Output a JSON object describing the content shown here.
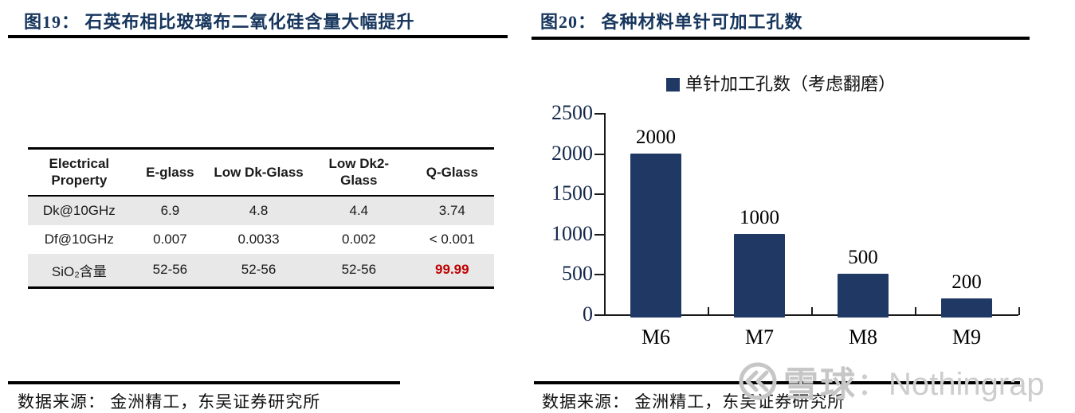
{
  "page": {
    "background": "#FFFFFF"
  },
  "colors": {
    "title_navy": "#17365D",
    "bar_navy": "#1F3864",
    "highlight_red": "#C00000",
    "table_row_shade": "#E8E8E8",
    "rule_black": "#000000",
    "watermark_gray": "#C6C6C6"
  },
  "figure_left": {
    "title": "图19： 石英布相比玻璃布二氧化硅含量大幅提升",
    "source": "数据来源： 金洲精工，东吴证券研究所",
    "table": {
      "headers": [
        "Electrical Property",
        "E-glass",
        "Low Dk-Glass",
        "Low Dk2-Glass",
        "Q-Glass"
      ],
      "rows": [
        {
          "cells": [
            "Dk@10GHz",
            "6.9",
            "4.8",
            "4.4",
            "3.74"
          ]
        },
        {
          "cells": [
            "Df@10GHz",
            "0.007",
            "0.0033",
            "0.002",
            "< 0.001"
          ]
        },
        {
          "cells": [
            "SiO₂含量",
            "52-56",
            "52-56",
            "52-56",
            "99.99"
          ]
        }
      ]
    }
  },
  "figure_right": {
    "title": "图20： 各种材料单针可加工孔数",
    "source": "数据来源： 金洲精工，东吴证券研究所",
    "chart_data": {
      "type": "bar",
      "title": "",
      "categories": [
        "M6",
        "M7",
        "M8",
        "M9"
      ],
      "series": [
        {
          "name": "单针加工孔数（考虑翻磨）",
          "values": [
            2000,
            1000,
            500,
            200
          ]
        }
      ],
      "xlabel": "",
      "ylabel": "",
      "ylim": [
        0,
        2500
      ],
      "yticks": [
        0,
        500,
        1000,
        1500,
        2000,
        2500
      ],
      "grid": false,
      "data_labels": true,
      "legend_position": "top",
      "bar_color": "#1F3864"
    }
  },
  "watermark": {
    "logo": "xueqiu-logo-icon",
    "brand": "雪球",
    "name": "：Nothingrap"
  }
}
